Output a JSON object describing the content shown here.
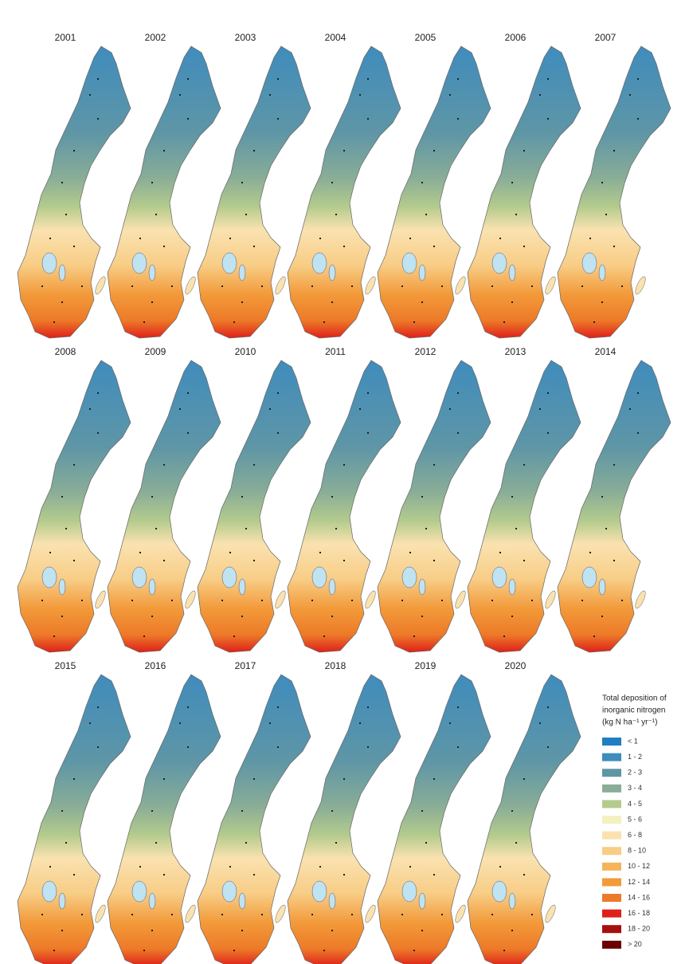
{
  "maps": [
    {
      "year": "2001"
    },
    {
      "year": "2002"
    },
    {
      "year": "2003"
    },
    {
      "year": "2004"
    },
    {
      "year": "2005"
    },
    {
      "year": "2006"
    },
    {
      "year": "2007"
    },
    {
      "year": "2008"
    },
    {
      "year": "2009"
    },
    {
      "year": "2010"
    },
    {
      "year": "2011"
    },
    {
      "year": "2012"
    },
    {
      "year": "2013"
    },
    {
      "year": "2014"
    },
    {
      "year": "2015"
    },
    {
      "year": "2016"
    },
    {
      "year": "2017"
    },
    {
      "year": "2018"
    },
    {
      "year": "2019"
    },
    {
      "year": "2020"
    }
  ],
  "legend": {
    "title": [
      "Total deposition of",
      "inorganic nitrogen",
      "(kg N ha⁻¹ yr⁻¹)"
    ],
    "items": [
      {
        "label": "< 1",
        "color": "#1f7fc0"
      },
      {
        "label": "1 - 2",
        "color": "#3f8cbd"
      },
      {
        "label": "2 - 3",
        "color": "#5f96a6"
      },
      {
        "label": "3 - 4",
        "color": "#89ad97"
      },
      {
        "label": "4 - 5",
        "color": "#b4cb8d"
      },
      {
        "label": "5 - 6",
        "color": "#f4f1c0"
      },
      {
        "label": "6 - 8",
        "color": "#fae2b0"
      },
      {
        "label": "8 - 10",
        "color": "#f8cd86"
      },
      {
        "label": "10 - 12",
        "color": "#f5b35a"
      },
      {
        "label": "12 - 14",
        "color": "#f29a3a"
      },
      {
        "label": "14 - 16",
        "color": "#ed7a28"
      },
      {
        "label": "16 - 18",
        "color": "#df201b"
      },
      {
        "label": "18 - 20",
        "color": "#a50f0f"
      },
      {
        "label": "> 20",
        "color": "#6a0000"
      }
    ]
  }
}
